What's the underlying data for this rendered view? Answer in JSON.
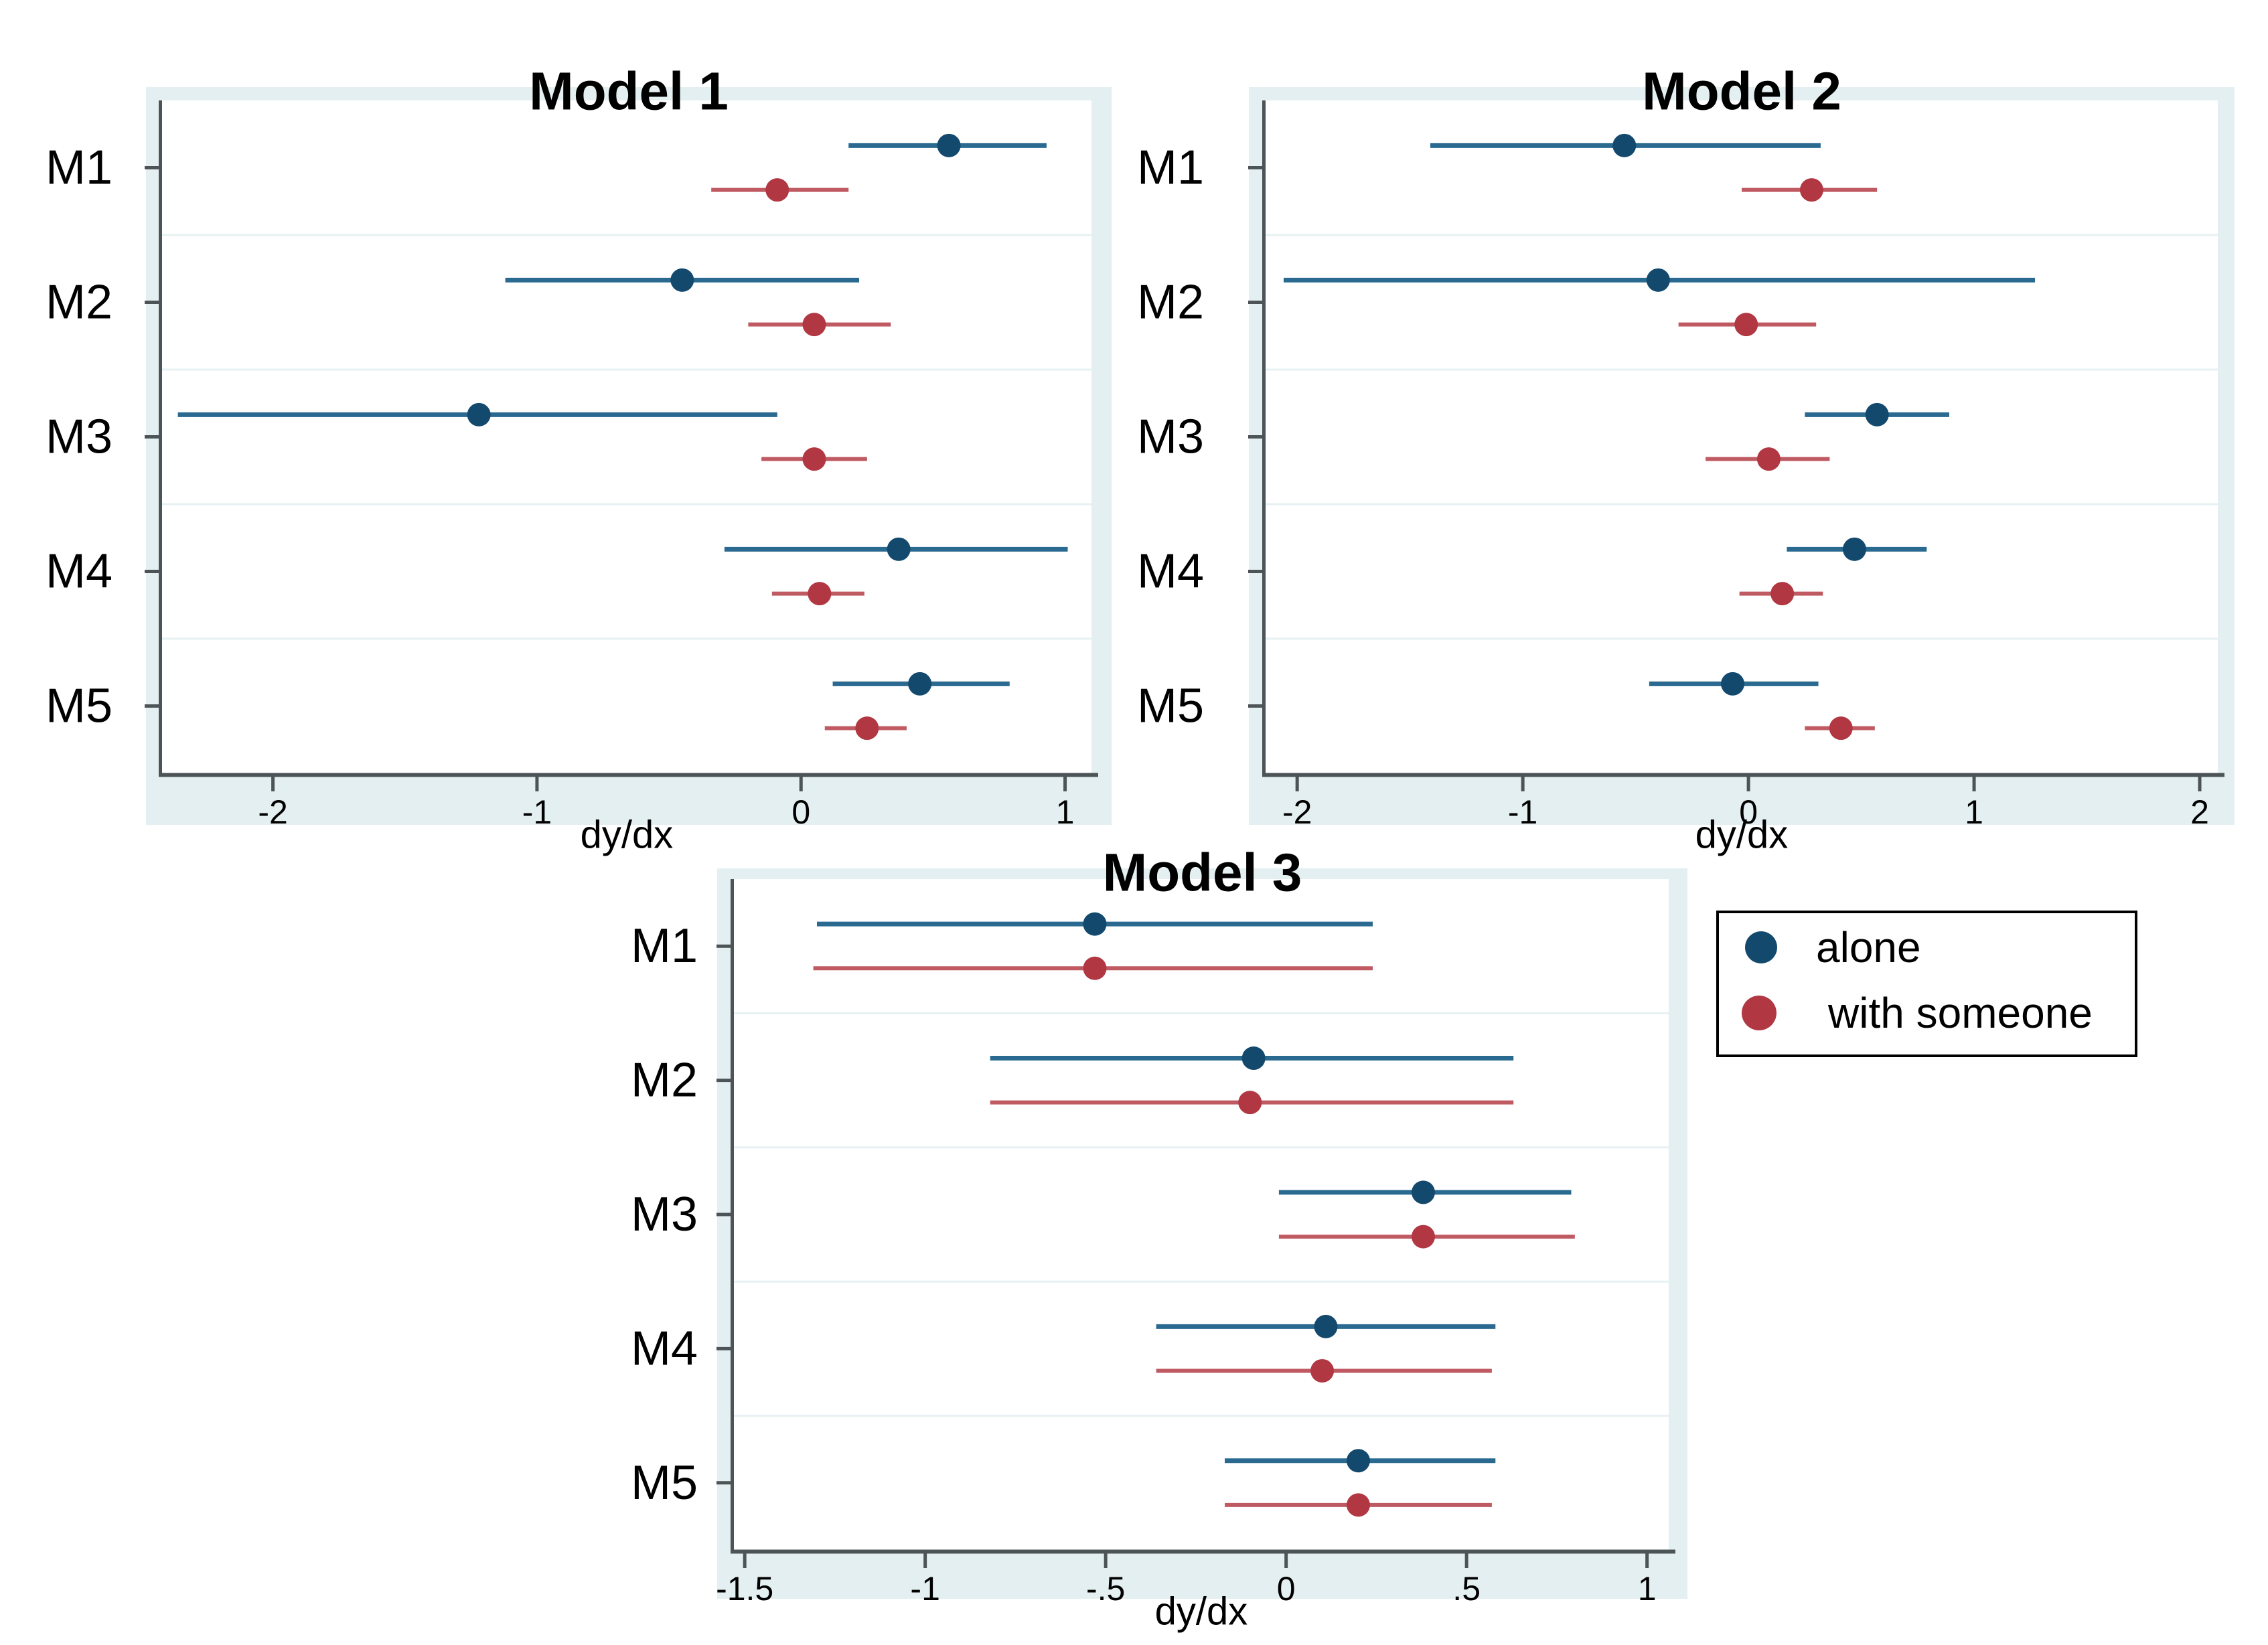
{
  "figure": {
    "legend": {
      "items": [
        {
          "label": "alone",
          "color": "#14496e"
        },
        {
          "label": "with someone",
          "color": "#b13843"
        }
      ]
    }
  },
  "style": {
    "panel_band": "#e4eff1",
    "plot_bg": "#ffffff",
    "gridline": "#e7f1f3",
    "axis": "#4d5457",
    "text": "#000000",
    "alone_marker": "#14496e",
    "alone_line": "#2a6a90",
    "someone_marker": "#b13843",
    "someone_line": "#c05a62"
  },
  "chart_data": [
    {
      "type": "scatter",
      "title": "Model 1",
      "xlabel": "dy/dx",
      "categories": [
        "M1",
        "M2",
        "M3",
        "M4",
        "M5"
      ],
      "xlim": [
        -2.42,
        1.1
      ],
      "xticks": [
        -2,
        -1,
        0,
        1
      ],
      "xtick_labels": [
        "-2",
        "-1",
        "0",
        "1"
      ],
      "grid": "horizontal category separators",
      "legend_position": "none",
      "series": [
        {
          "name": "alone",
          "marker_color": "#14496e",
          "line_color": "#2a6a90",
          "values": [
            0.56,
            -0.45,
            -1.22,
            0.37,
            0.45
          ],
          "ci_low": [
            0.18,
            -1.12,
            -2.36,
            -0.29,
            0.12
          ],
          "ci_high": [
            0.93,
            0.22,
            -0.09,
            1.01,
            0.79
          ]
        },
        {
          "name": "with someone",
          "marker_color": "#b13843",
          "line_color": "#c05a62",
          "values": [
            -0.09,
            0.05,
            0.05,
            0.07,
            0.25
          ],
          "ci_low": [
            -0.34,
            -0.2,
            -0.15,
            -0.11,
            0.09
          ],
          "ci_high": [
            0.18,
            0.34,
            0.25,
            0.24,
            0.4
          ]
        }
      ]
    },
    {
      "type": "scatter",
      "title": "Model 2",
      "xlabel": "dy/dx",
      "categories": [
        "M1",
        "M2",
        "M3",
        "M4",
        "M5"
      ],
      "xlim": [
        -2.14,
        2.08
      ],
      "xticks": [
        -2,
        -1,
        0,
        1,
        2
      ],
      "xtick_labels": [
        "-2",
        "-1",
        "0",
        "1",
        "2"
      ],
      "grid": "horizontal category separators",
      "legend_position": "none",
      "series": [
        {
          "name": "alone",
          "marker_color": "#14496e",
          "line_color": "#2a6a90",
          "values": [
            -0.55,
            -0.4,
            0.57,
            0.47,
            -0.07
          ],
          "ci_low": [
            -1.41,
            -2.06,
            0.25,
            0.17,
            -0.44
          ],
          "ci_high": [
            0.32,
            1.27,
            0.89,
            0.79,
            0.31
          ]
        },
        {
          "name": "with someone",
          "marker_color": "#b13843",
          "line_color": "#c05a62",
          "values": [
            0.28,
            -0.01,
            0.09,
            0.15,
            0.41
          ],
          "ci_low": [
            -0.03,
            -0.31,
            -0.19,
            -0.04,
            0.25
          ],
          "ci_high": [
            0.57,
            0.3,
            0.36,
            0.33,
            0.56
          ]
        }
      ]
    },
    {
      "type": "scatter",
      "title": "Model 3",
      "xlabel": "dy/dx",
      "categories": [
        "M1",
        "M2",
        "M3",
        "M4",
        "M5"
      ],
      "xlim": [
        -1.53,
        1.06
      ],
      "xticks": [
        -1.5,
        -1,
        -0.5,
        0,
        0.5,
        1
      ],
      "xtick_labels": [
        "-1.5",
        "-1",
        "-.5",
        "0",
        ".5",
        "1"
      ],
      "grid": "horizontal category separators",
      "legend_position": "outside upper right",
      "series": [
        {
          "name": "alone",
          "marker_color": "#14496e",
          "line_color": "#2a6a90",
          "values": [
            -0.53,
            -0.09,
            0.38,
            0.11,
            0.2
          ],
          "ci_low": [
            -1.3,
            -0.82,
            -0.02,
            -0.36,
            -0.17
          ],
          "ci_high": [
            0.24,
            0.63,
            0.79,
            0.58,
            0.58
          ]
        },
        {
          "name": "with someone",
          "marker_color": "#b13843",
          "line_color": "#c05a62",
          "values": [
            -0.53,
            -0.1,
            0.38,
            0.1,
            0.2
          ],
          "ci_low": [
            -1.31,
            -0.82,
            -0.02,
            -0.36,
            -0.17
          ],
          "ci_high": [
            0.24,
            0.63,
            0.8,
            0.57,
            0.57
          ]
        }
      ]
    }
  ]
}
